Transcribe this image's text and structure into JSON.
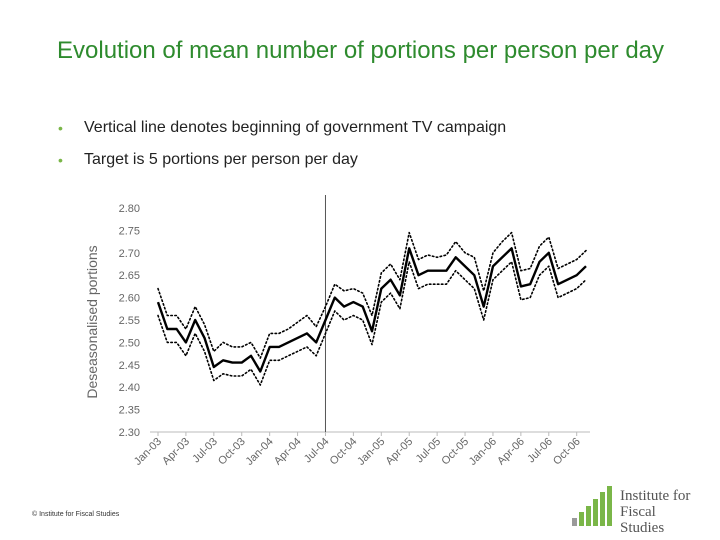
{
  "slide": {
    "title": "Evolution of mean number of portions per person per day",
    "bullets": [
      "Vertical line denotes beginning of government TV campaign",
      "Target is 5 portions per person per day"
    ],
    "footer": "© Institute for Fiscal Studies",
    "logo_lines": [
      "Institute for",
      "Fiscal Studies"
    ]
  },
  "colors": {
    "title": "#2e8b2e",
    "bullet": "#7ab648",
    "logo_green": "#7ab648",
    "logo_gray": "#9a9a9a",
    "series": "#000000",
    "campaign_line": "#555555"
  },
  "chart_data": {
    "type": "line",
    "ylabel": "Deseasonalised portions",
    "ylim": [
      2.3,
      2.8
    ],
    "yticks": [
      "2.30",
      "2.35",
      "2.40",
      "2.45",
      "2.50",
      "2.55",
      "2.60",
      "2.65",
      "2.70",
      "2.75",
      "2.80"
    ],
    "xticks": [
      "Jan-03",
      "Apr-03",
      "Jul-03",
      "Oct-03",
      "Jan-04",
      "Apr-04",
      "Jul-04",
      "Oct-04",
      "Jan-05",
      "Apr-05",
      "Jul-05",
      "Oct-05",
      "Jan-06",
      "Apr-06",
      "Jul-06",
      "Oct-06"
    ],
    "campaign_month_index": 18,
    "grid": false,
    "series": [
      {
        "style": "solid",
        "values": [
          2.59,
          2.53,
          2.53,
          2.5,
          2.55,
          2.51,
          2.445,
          2.46,
          2.455,
          2.455,
          2.47,
          2.435,
          2.49,
          2.49,
          2.5,
          2.51,
          2.52,
          2.5,
          2.55,
          2.6,
          2.58,
          2.59,
          2.58,
          2.525,
          2.62,
          2.64,
          2.605,
          2.71,
          2.65,
          2.66,
          2.66,
          2.66,
          2.69,
          2.67,
          2.65,
          2.58,
          2.67,
          2.69,
          2.71,
          2.625,
          2.63,
          2.68,
          2.7,
          2.63,
          2.64,
          2.65,
          2.67
        ]
      },
      {
        "style": "dotted",
        "values": [
          2.62,
          2.56,
          2.56,
          2.53,
          2.58,
          2.54,
          2.48,
          2.5,
          2.49,
          2.49,
          2.5,
          2.465,
          2.52,
          2.52,
          2.53,
          2.545,
          2.56,
          2.535,
          2.58,
          2.63,
          2.615,
          2.62,
          2.61,
          2.56,
          2.655,
          2.675,
          2.64,
          2.745,
          2.685,
          2.695,
          2.69,
          2.695,
          2.725,
          2.7,
          2.69,
          2.615,
          2.7,
          2.725,
          2.745,
          2.66,
          2.665,
          2.715,
          2.735,
          2.665,
          2.675,
          2.685,
          2.705
        ]
      },
      {
        "style": "dotted",
        "values": [
          2.56,
          2.5,
          2.5,
          2.47,
          2.52,
          2.48,
          2.415,
          2.43,
          2.425,
          2.425,
          2.44,
          2.405,
          2.46,
          2.46,
          2.47,
          2.48,
          2.49,
          2.47,
          2.52,
          2.57,
          2.55,
          2.56,
          2.55,
          2.495,
          2.59,
          2.61,
          2.575,
          2.68,
          2.62,
          2.63,
          2.63,
          2.63,
          2.66,
          2.64,
          2.62,
          2.55,
          2.64,
          2.66,
          2.68,
          2.595,
          2.6,
          2.65,
          2.67,
          2.6,
          2.61,
          2.62,
          2.64
        ]
      }
    ]
  }
}
